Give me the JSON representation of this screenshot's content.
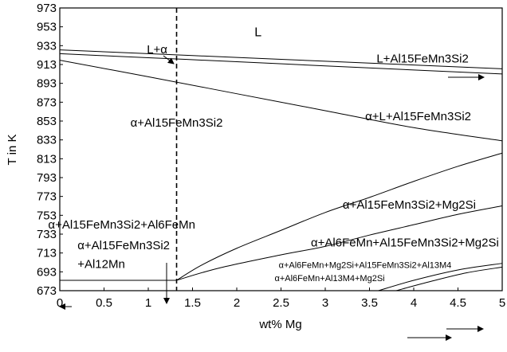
{
  "chart_data": {
    "type": "line",
    "title": "",
    "xlabel": "wt% Mg",
    "ylabel": "T in K",
    "xlim": [
      0,
      5
    ],
    "ylim": [
      673,
      973
    ],
    "x_ticks": [
      0,
      0.5,
      1,
      1.5,
      2,
      2.5,
      3,
      3.5,
      4,
      4.5,
      5
    ],
    "x_tick_labels": [
      "0",
      "0.5",
      "1",
      "1.5",
      "2",
      "2.5",
      "3",
      "3.5",
      "4",
      "4.5",
      "5"
    ],
    "y_ticks": [
      673,
      693,
      713,
      733,
      753,
      773,
      793,
      813,
      833,
      853,
      873,
      893,
      913,
      933,
      953,
      973
    ],
    "y_tick_labels": [
      "673",
      "693",
      "713",
      "733",
      "753",
      "773",
      "793",
      "813",
      "833",
      "853",
      "873",
      "893",
      "913",
      "933",
      "953",
      "973"
    ],
    "grid": false,
    "dashed_line_x": 1.32,
    "series": [
      {
        "x": [
          0,
          1,
          2,
          3,
          4,
          5
        ],
        "y": [
          928.5,
          924.5,
          920.5,
          916.5,
          912.5,
          908.5
        ]
      },
      {
        "x": [
          0,
          1,
          2,
          3,
          4,
          5
        ],
        "y": [
          924.5,
          920.2,
          916,
          911.5,
          907.2,
          903
        ]
      },
      {
        "x": [
          0,
          1,
          2,
          3,
          4,
          5
        ],
        "y": [
          917.5,
          900,
          882,
          864,
          846,
          832
        ]
      },
      {
        "x": [
          0,
          1,
          1.32
        ],
        "y": [
          684,
          684,
          684
        ]
      },
      {
        "x": [
          1.32,
          1.6,
          2,
          2.5,
          3,
          3.5,
          4,
          4.5,
          5
        ],
        "y": [
          684,
          700,
          718,
          737,
          756,
          772,
          789,
          805,
          819
        ]
      },
      {
        "x": [
          1.32,
          1.8,
          2.5,
          3,
          3.5,
          4,
          4.5,
          5
        ],
        "y": [
          684,
          697,
          711,
          720,
          732,
          743,
          754,
          763
        ]
      },
      {
        "x": [
          3.6,
          4,
          4.5,
          5
        ],
        "y": [
          673,
          684,
          695,
          702
        ]
      },
      {
        "x": [
          3.8,
          4.2,
          4.6,
          5
        ],
        "y": [
          673,
          683,
          692,
          698
        ]
      }
    ],
    "annotations": [
      {
        "text": "L",
        "x": 2.2,
        "y": 943
      },
      {
        "text": "L+α",
        "x": 1.1,
        "y": 925
      },
      {
        "text": "L+Al15FeMn3Si2",
        "x": 4.1,
        "y": 915
      },
      {
        "text": "α+L+Al15FeMn3Si2",
        "x": 4.05,
        "y": 854
      },
      {
        "text": "α+Al15FeMn3Si2",
        "x": 1.32,
        "y": 847
      },
      {
        "text": "α+Al15FeMn3Si2+Mg2Si",
        "x": 3.95,
        "y": 760
      },
      {
        "text": "α+Al15FeMn3Si2+Al6FeMn",
        "x": 0.7,
        "y": 739
      },
      {
        "text": "α+Al15FeMn3Si2",
        "x": 0.2,
        "y": 717
      },
      {
        "text": "+Al12Mn",
        "x": 0.2,
        "y": 697
      },
      {
        "text": "α+Al6FeMn+Al15FeMn3Si2+Mg2Si",
        "x": 3.9,
        "y": 720
      },
      {
        "text": "α+Al6FeMn+Mg2Si+Al15FeMn3Si2+Al13M4",
        "x": 3.45,
        "y": 697
      },
      {
        "text": "α+Al6FeMn+Al13M4+Mg2Si",
        "x": 3.05,
        "y": 683
      }
    ]
  }
}
